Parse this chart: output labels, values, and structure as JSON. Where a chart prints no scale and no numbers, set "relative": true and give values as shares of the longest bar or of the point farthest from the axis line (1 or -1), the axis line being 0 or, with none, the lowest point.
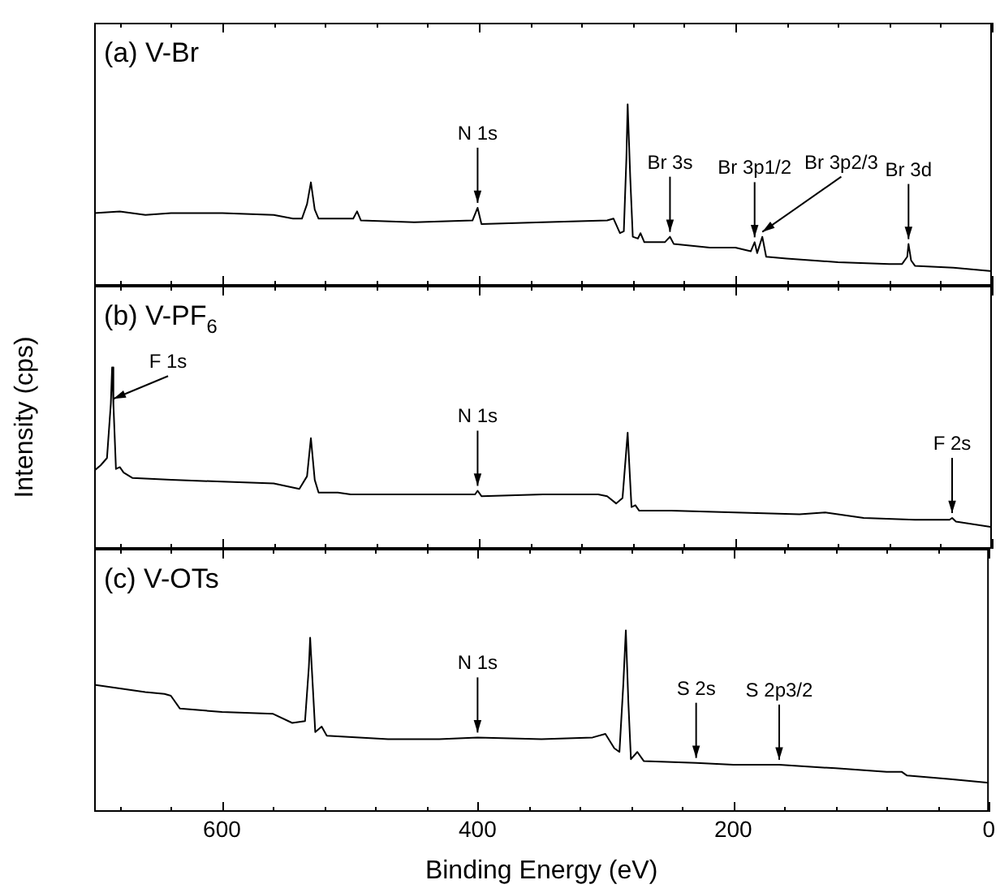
{
  "chart_data": [
    {
      "type": "line",
      "title": "(a) V-Br",
      "relative": true,
      "xlim": [
        700,
        0
      ],
      "xticks": [
        600,
        400,
        200,
        0
      ],
      "tick_labels": false,
      "series": [
        {
          "color": "#000000",
          "x": [
            700,
            680,
            660,
            640,
            600,
            560,
            545,
            538,
            534,
            531,
            528,
            525,
            510,
            498,
            495,
            492,
            450,
            405,
            401,
            398,
            350,
            300,
            295,
            290,
            287,
            285,
            284,
            282,
            280,
            276,
            274,
            271,
            255,
            251,
            248,
            220,
            200,
            188,
            185,
            183,
            179,
            176,
            160,
            120,
            80,
            70,
            66,
            65,
            63,
            60,
            30,
            0
          ],
          "values": [
            0.4,
            0.41,
            0.39,
            0.4,
            0.4,
            0.39,
            0.37,
            0.37,
            0.45,
            0.57,
            0.42,
            0.37,
            0.37,
            0.37,
            0.41,
            0.36,
            0.35,
            0.36,
            0.43,
            0.34,
            0.35,
            0.36,
            0.37,
            0.29,
            0.3,
            0.7,
            1.0,
            0.6,
            0.27,
            0.26,
            0.29,
            0.24,
            0.24,
            0.27,
            0.23,
            0.21,
            0.21,
            0.19,
            0.24,
            0.18,
            0.27,
            0.16,
            0.15,
            0.13,
            0.12,
            0.12,
            0.16,
            0.23,
            0.14,
            0.11,
            0.1,
            0.08
          ]
        }
      ],
      "annotations": [
        {
          "text": "N 1s",
          "x": 401,
          "y": 0.43
        },
        {
          "text": "Br 3s",
          "x": 251,
          "y": 0.27
        },
        {
          "text": "Br 3p1/2",
          "x": 185,
          "y": 0.24
        },
        {
          "text": "Br 3p2/3",
          "x": 179,
          "y": 0.27
        },
        {
          "text": "Br 3d",
          "x": 65,
          "y": 0.23
        }
      ]
    },
    {
      "type": "line",
      "title": "(b) V-PF$_{6}$",
      "ylabel": "Intensity (cps)",
      "relative": true,
      "xlim": [
        700,
        0
      ],
      "xticks": [
        600,
        400,
        200,
        0
      ],
      "tick_labels": false,
      "series": [
        {
          "color": "#000000",
          "x": [
            700,
            695,
            690,
            687,
            686,
            685,
            683,
            680,
            677,
            670,
            640,
            600,
            560,
            540,
            534,
            531,
            528,
            525,
            510,
            500,
            450,
            403,
            401,
            398,
            350,
            307,
            300,
            293,
            288,
            285,
            284,
            283,
            281,
            278,
            275,
            250,
            200,
            150,
            130,
            100,
            60,
            33,
            31,
            28,
            0
          ],
          "values": [
            0.43,
            0.46,
            0.5,
            0.8,
            1.0,
            0.8,
            0.44,
            0.45,
            0.42,
            0.39,
            0.38,
            0.37,
            0.36,
            0.33,
            0.4,
            0.61,
            0.38,
            0.31,
            0.31,
            0.3,
            0.3,
            0.3,
            0.32,
            0.29,
            0.3,
            0.3,
            0.29,
            0.25,
            0.28,
            0.55,
            0.64,
            0.5,
            0.23,
            0.24,
            0.21,
            0.21,
            0.2,
            0.19,
            0.2,
            0.17,
            0.16,
            0.16,
            0.17,
            0.15,
            0.12
          ]
        }
      ],
      "annotations": [
        {
          "text": "F 1s",
          "x": 685,
          "y": 0.8
        },
        {
          "text": "N 1s",
          "x": 401,
          "y": 0.32
        },
        {
          "text": "F 2s",
          "x": 31,
          "y": 0.17
        }
      ]
    },
    {
      "type": "line",
      "title": "(c) V-OTs",
      "xlabel": "Binding Energy (eV)",
      "relative": true,
      "xlim": [
        700,
        0
      ],
      "xticks": [
        600,
        400,
        200,
        0
      ],
      "tick_labels": "x",
      "series": [
        {
          "color": "#000000",
          "x": [
            700,
            680,
            660,
            645,
            640,
            633,
            600,
            560,
            545,
            535,
            532,
            531,
            529,
            527,
            522,
            518,
            470,
            430,
            400,
            350,
            310,
            300,
            293,
            289,
            286,
            284,
            282,
            280,
            275,
            270,
            229,
            200,
            164,
            120,
            80,
            68,
            64,
            30,
            0
          ],
          "values": [
            0.7,
            0.68,
            0.66,
            0.65,
            0.64,
            0.57,
            0.55,
            0.54,
            0.49,
            0.5,
            0.8,
            0.96,
            0.7,
            0.44,
            0.47,
            0.42,
            0.4,
            0.4,
            0.41,
            0.4,
            0.41,
            0.43,
            0.35,
            0.33,
            0.7,
            1.0,
            0.6,
            0.29,
            0.33,
            0.28,
            0.27,
            0.26,
            0.26,
            0.24,
            0.22,
            0.22,
            0.2,
            0.18,
            0.16
          ]
        }
      ],
      "annotations": [
        {
          "text": "N 1s",
          "x": 400,
          "y": 0.41
        },
        {
          "text": "S 2s",
          "x": 229,
          "y": 0.27
        },
        {
          "text": "S 2p3/2",
          "x": 164,
          "y": 0.26
        }
      ]
    }
  ]
}
